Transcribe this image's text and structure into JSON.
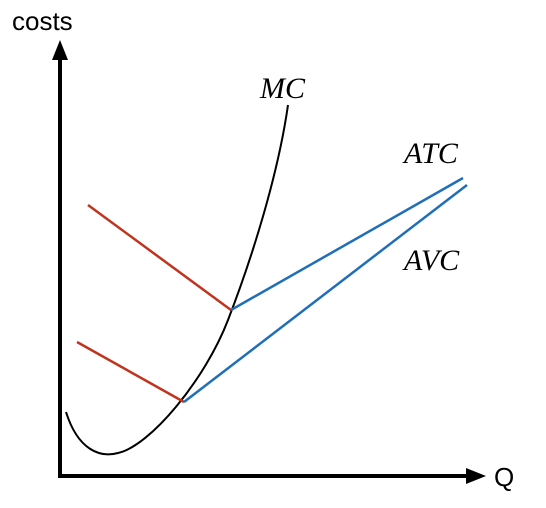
{
  "axes": {
    "y_label": "costs",
    "x_label": "Q"
  },
  "curves": {
    "mc": {
      "label": "MC"
    },
    "atc": {
      "label": "ATC"
    },
    "avc": {
      "label": "AVC"
    }
  },
  "colors": {
    "axis": "#000000",
    "mc": "#000000",
    "red_segment": "#c0341d",
    "blue_segment": "#1f6fb8"
  }
}
